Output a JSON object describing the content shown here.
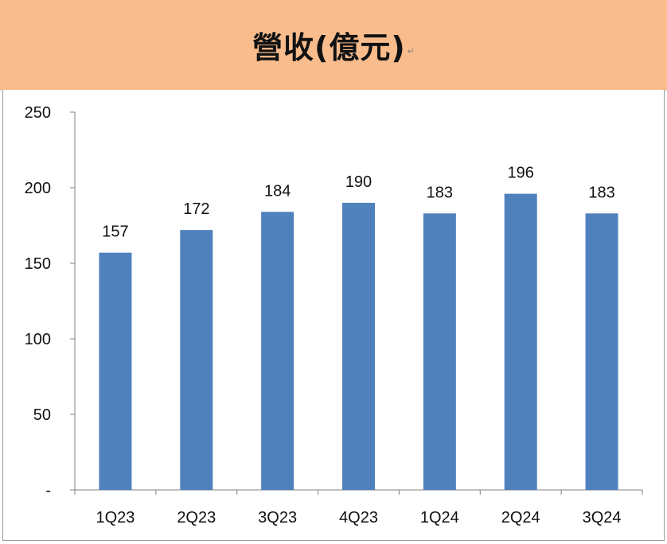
{
  "title": "營收(億元)",
  "title_mark": "↵",
  "colors": {
    "title_band": "#f8bc8d",
    "bar": "#4f81bd",
    "axis": "#808080"
  },
  "chart_data": {
    "type": "bar",
    "title": "營收(億元)",
    "categories": [
      "1Q23",
      "2Q23",
      "3Q23",
      "4Q23",
      "1Q24",
      "2Q24",
      "3Q24"
    ],
    "values": [
      157,
      172,
      184,
      190,
      183,
      196,
      183
    ],
    "data_labels": [
      "157",
      "172",
      "184",
      "190",
      "183",
      "196",
      "183"
    ],
    "ylim": [
      0,
      250
    ],
    "yticks": [
      0,
      50,
      100,
      150,
      200,
      250
    ],
    "ytick_labels": [
      "-",
      "50",
      "100",
      "150",
      "200",
      "250"
    ],
    "xlabel": "",
    "ylabel": "",
    "grid": false,
    "legend": "none"
  }
}
